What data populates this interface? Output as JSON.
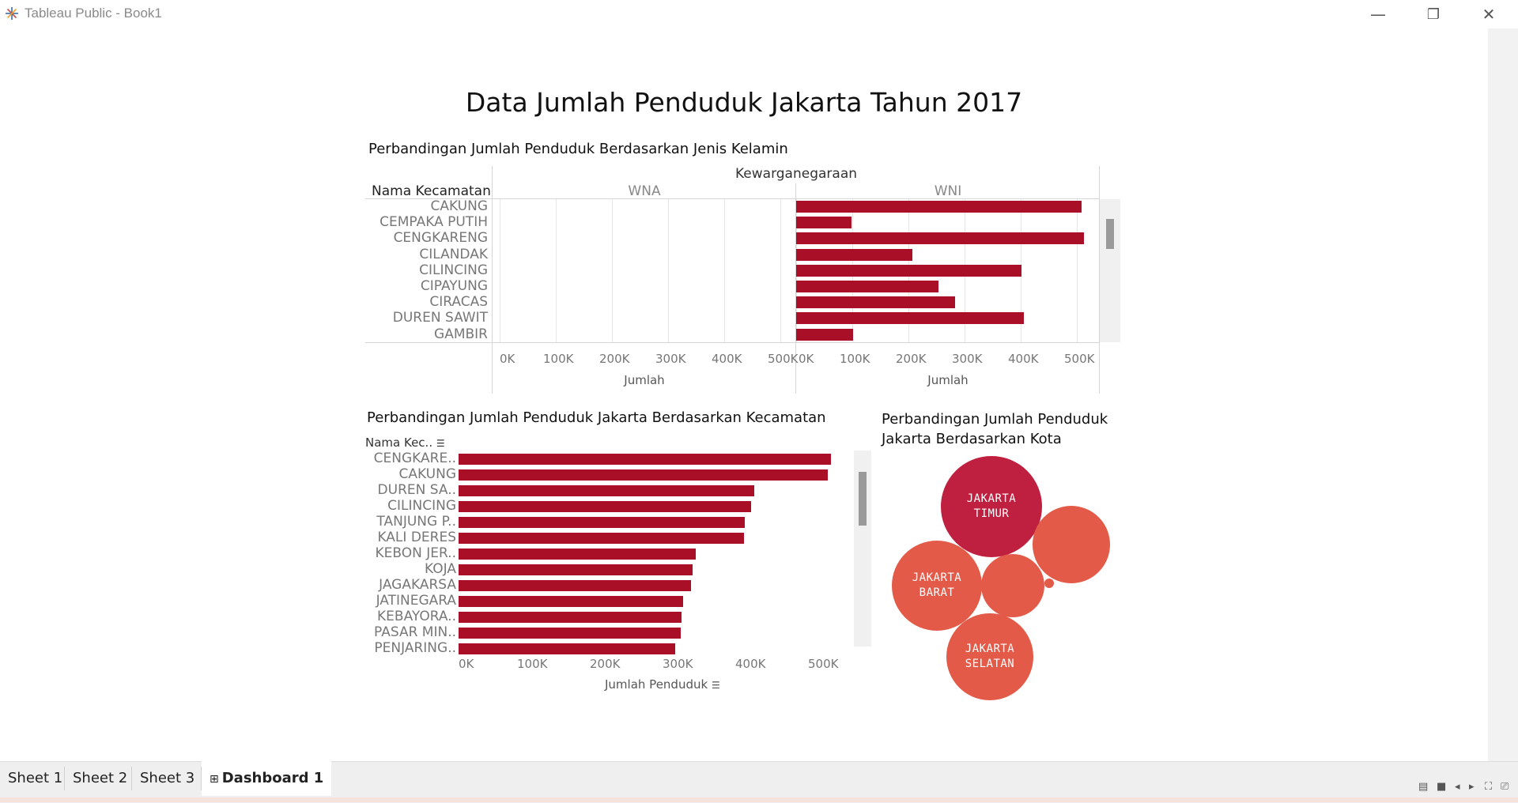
{
  "window": {
    "title": "Tableau Public - Book1",
    "controls": {
      "minimize": "—",
      "restore": "❐",
      "close": "✕"
    }
  },
  "dashboard": {
    "title": "Data Jumlah Penduduk Jakarta Tahun 2017"
  },
  "chart_data": [
    {
      "type": "bar",
      "title": "Perbandingan Jumlah Penduduk Berdasarkan Jenis Kelamin",
      "orientation": "horizontal",
      "column_header": "Kewarganegaraan",
      "row_header": "Nama Kecamatan",
      "panels": [
        "WNA",
        "WNI"
      ],
      "categories": [
        "CAKUNG",
        "CEMPAKA PUTIH",
        "CENGKARENG",
        "CILANDAK",
        "CILINCING",
        "CIPAYUNG",
        "CIRACAS",
        "DUREN SAWIT",
        "GAMBIR"
      ],
      "series": [
        {
          "name": "WNA",
          "values": [
            0,
            0,
            0,
            0,
            0,
            0,
            0,
            0,
            0
          ]
        },
        {
          "name": "WNI",
          "values": [
            508000,
            98000,
            512000,
            207000,
            402000,
            254000,
            283000,
            406000,
            101000
          ]
        }
      ],
      "xlabel": "Jumlah",
      "xticks": [
        "0K",
        "100K",
        "200K",
        "300K",
        "400K",
        "500K"
      ],
      "xlim": [
        0,
        530000
      ],
      "grid": true
    },
    {
      "type": "bar",
      "title": "Perbandingan Jumlah Penduduk Jakarta Berdasarkan Kecamatan",
      "orientation": "horizontal",
      "row_header": "Nama Kec..",
      "categories": [
        "CENGKARE..",
        "CAKUNG",
        "DUREN SA..",
        "CILINCING",
        "TANJUNG P..",
        "KALI DERES",
        "KEBON JER..",
        "KOJA",
        "JAGAKARSA",
        "JATINEGARA",
        "KEBAYORA..",
        "PASAR MIN..",
        "PENJARING.."
      ],
      "values": [
        512000,
        508000,
        406000,
        402000,
        394000,
        392000,
        326000,
        322000,
        320000,
        309000,
        306000,
        305000,
        298000
      ],
      "xlabel": "Jumlah Penduduk",
      "xticks": [
        "0K",
        "100K",
        "200K",
        "300K",
        "400K",
        "500K"
      ],
      "xlim": [
        0,
        530000
      ],
      "grid": false
    },
    {
      "type": "bubble",
      "title": "Perbandingan Jumlah Penduduk Jakarta Berdasarkan Kota",
      "bubbles": [
        {
          "label": "JAKARTA TIMUR",
          "lines": [
            "JAKARTA",
            "TIMUR"
          ],
          "color": "#c0203f"
        },
        {
          "label": "JAKARTA BARAT",
          "lines": [
            "JAKARTA",
            "BARAT"
          ],
          "color": "#e35a48"
        },
        {
          "label": "JAKARTA SELATAN",
          "lines": [
            "JAKARTA",
            "SELATAN"
          ],
          "color": "#e35a48"
        },
        {
          "label": "",
          "lines": [],
          "color": "#e35a48"
        },
        {
          "label": "",
          "lines": [],
          "color": "#e35a48"
        },
        {
          "label": "",
          "lines": [],
          "color": "#e35a48"
        }
      ]
    }
  ],
  "tabs": [
    {
      "label": "Sheet 1"
    },
    {
      "label": "Sheet 2"
    },
    {
      "label": "Sheet 3"
    },
    {
      "label": "Dashboard 1",
      "icon": "dashboard-grid-icon",
      "active": true
    }
  ],
  "colors": {
    "bar": "#a91028",
    "bubble_primary": "#c0203f",
    "bubble_secondary": "#e35a48"
  }
}
